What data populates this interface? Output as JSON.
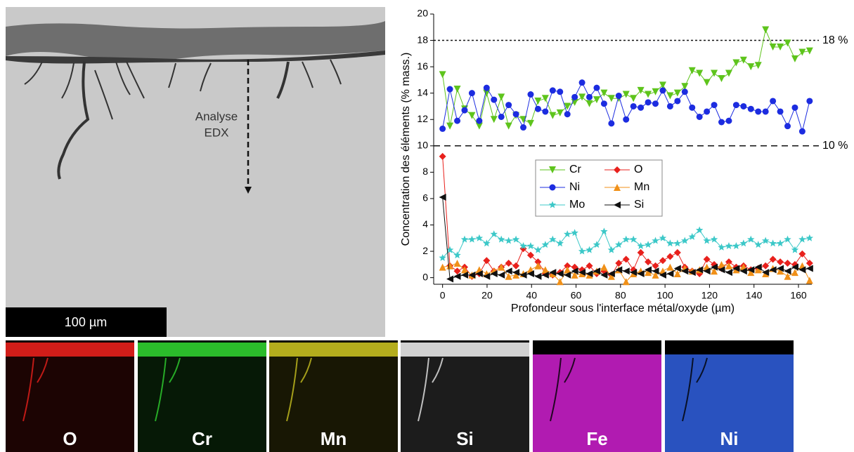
{
  "image": {
    "annotation": [
      "Analyse",
      "EDX"
    ],
    "scale_bar": "100 µm",
    "maps": [
      {
        "label": "O",
        "color": "#e8201c"
      },
      {
        "label": "Cr",
        "color": "#30d030"
      },
      {
        "label": "Mn",
        "color": "#c8c020"
      },
      {
        "label": "Si",
        "color": "#e8e8e8"
      },
      {
        "label": "Fe",
        "color": "#d020d0"
      },
      {
        "label": "Ni",
        "color": "#3060e0"
      }
    ]
  },
  "chart_data": {
    "type": "line",
    "x_label": "Profondeur sous l'interface métal/oxyde (µm)",
    "y_label": "Concentration des éléments (% mass.)",
    "x": [
      0,
      3.3,
      6.6,
      9.9,
      13.2,
      16.5,
      19.8,
      23.1,
      26.4,
      29.7,
      33,
      36.3,
      39.6,
      42.9,
      46.2,
      49.5,
      52.8,
      56.1,
      59.4,
      62.7,
      66,
      69.3,
      72.6,
      75.9,
      79.2,
      82.5,
      85.8,
      89.1,
      92.4,
      95.7,
      99,
      102.3,
      105.6,
      108.9,
      112.2,
      115.5,
      118.8,
      122.1,
      125.4,
      128.7,
      132,
      135.3,
      138.6,
      141.9,
      145.2,
      148.5,
      151.8,
      155.1,
      158.4,
      161.7,
      165
    ],
    "series": [
      {
        "name": "Cr",
        "color": "#5ec41c",
        "marker": "triangle-down",
        "values": [
          15.4,
          11.5,
          14.3,
          12.8,
          12.3,
          11.5,
          14.0,
          12.0,
          13.7,
          11.5,
          12.3,
          12.0,
          11.7,
          13.4,
          13.6,
          12.3,
          12.5,
          13.0,
          13.3,
          13.7,
          13.2,
          13.5,
          14.0,
          13.6,
          13.6,
          13.9,
          13.6,
          14.2,
          13.9,
          14.1,
          14.6,
          13.8,
          14.0,
          14.5,
          15.7,
          15.5,
          14.8,
          15.5,
          15.1,
          15.5,
          16.3,
          16.5,
          16.0,
          16.1,
          18.8,
          17.5,
          17.5,
          17.8,
          16.6,
          17.1,
          17.2
        ]
      },
      {
        "name": "O",
        "color": "#e8201c",
        "marker": "diamond",
        "values": [
          9.2,
          0.9,
          0.5,
          0.8,
          0.1,
          0.3,
          1.3,
          0.5,
          0.8,
          1.1,
          0.9,
          2.2,
          1.7,
          1.2,
          0.3,
          0.2,
          0.4,
          0.9,
          0.8,
          0.6,
          0.9,
          0.3,
          0.5,
          0.2,
          1.1,
          1.4,
          0.6,
          1.9,
          1.2,
          0.9,
          1.3,
          1.6,
          1.9,
          0.8,
          0.5,
          0.3,
          1.4,
          1.0,
          0.7,
          1.2,
          0.8,
          0.9,
          0.6,
          0.7,
          0.9,
          1.4,
          1.2,
          1.1,
          1.0,
          1.8,
          1.1
        ]
      },
      {
        "name": "Ni",
        "color": "#1c2ce0",
        "marker": "circle",
        "values": [
          11.3,
          14.3,
          11.9,
          12.7,
          14.0,
          11.9,
          14.4,
          13.5,
          12.2,
          13.1,
          12.4,
          11.4,
          13.9,
          12.8,
          12.6,
          14.2,
          14.1,
          12.4,
          13.7,
          14.8,
          13.7,
          14.4,
          13.2,
          11.7,
          13.8,
          12.0,
          13.0,
          12.9,
          13.3,
          13.2,
          14.2,
          13.0,
          13.4,
          14.1,
          12.9,
          12.2,
          12.6,
          13.1,
          11.8,
          11.9,
          13.1,
          13.0,
          12.8,
          12.6,
          12.6,
          13.4,
          12.6,
          11.5,
          12.9,
          11.1,
          13.4
        ]
      },
      {
        "name": "Mn",
        "color": "#f09018",
        "marker": "triangle-up",
        "values": [
          0.8,
          0.9,
          1.1,
          0.6,
          0.2,
          0.6,
          0.3,
          0.5,
          0.8,
          0.1,
          0.2,
          0.3,
          0.6,
          0.9,
          0.6,
          0.3,
          -0.3,
          0.6,
          0.2,
          0.3,
          0.2,
          0.5,
          0.8,
          0.1,
          0.6,
          -0.3,
          0.3,
          0.5,
          0.4,
          0.2,
          0.5,
          0.8,
          0.3,
          0.7,
          0.5,
          0.6,
          0.8,
          0.5,
          1.0,
          0.9,
          0.6,
          0.8,
          0.4,
          0.6,
          0.3,
          0.7,
          0.5,
          0.1,
          0.4,
          0.9,
          -0.2
        ]
      },
      {
        "name": "Mo",
        "color": "#3cc8c8",
        "marker": "star",
        "values": [
          1.5,
          2.1,
          1.7,
          2.9,
          2.9,
          3.0,
          2.6,
          3.3,
          2.9,
          2.8,
          2.9,
          2.4,
          2.4,
          2.1,
          2.5,
          2.9,
          2.6,
          3.3,
          3.4,
          2.0,
          2.1,
          2.5,
          3.5,
          2.1,
          2.5,
          2.9,
          2.9,
          2.4,
          2.5,
          2.8,
          3.0,
          2.6,
          2.6,
          2.8,
          3.1,
          3.6,
          2.8,
          2.9,
          2.3,
          2.4,
          2.4,
          2.6,
          2.9,
          2.5,
          2.8,
          2.6,
          2.6,
          2.9,
          2.1,
          2.9,
          3.0
        ]
      },
      {
        "name": "Si",
        "color": "#101010",
        "marker": "triangle-left",
        "values": [
          6.1,
          -0.1,
          0.1,
          0.2,
          0.2,
          0.3,
          0.1,
          0.3,
          0.2,
          0.5,
          0.4,
          0.2,
          0.3,
          0.1,
          0.2,
          0.4,
          0.3,
          0.2,
          0.5,
          0.4,
          0.3,
          0.5,
          0.2,
          0.3,
          0.6,
          0.5,
          0.4,
          0.3,
          0.6,
          0.5,
          0.2,
          0.3,
          0.7,
          0.5,
          0.4,
          0.6,
          0.5,
          0.8,
          0.6,
          0.4,
          0.7,
          0.5,
          0.6,
          0.8,
          0.4,
          0.6,
          0.7,
          0.5,
          0.8,
          0.6,
          0.7
        ]
      }
    ],
    "reference_lines": [
      {
        "value": 18,
        "label": "18 %",
        "style": "dotted"
      },
      {
        "value": 10,
        "label": "10 %",
        "style": "dashed"
      }
    ],
    "xlim": [
      -4,
      166
    ],
    "ylim": [
      -0.5,
      20
    ],
    "xticks": [
      0,
      20,
      40,
      60,
      80,
      100,
      120,
      140,
      160
    ],
    "yticks": [
      0,
      2,
      4,
      6,
      8,
      10,
      12,
      14,
      16,
      18,
      20
    ],
    "legend": "center"
  }
}
